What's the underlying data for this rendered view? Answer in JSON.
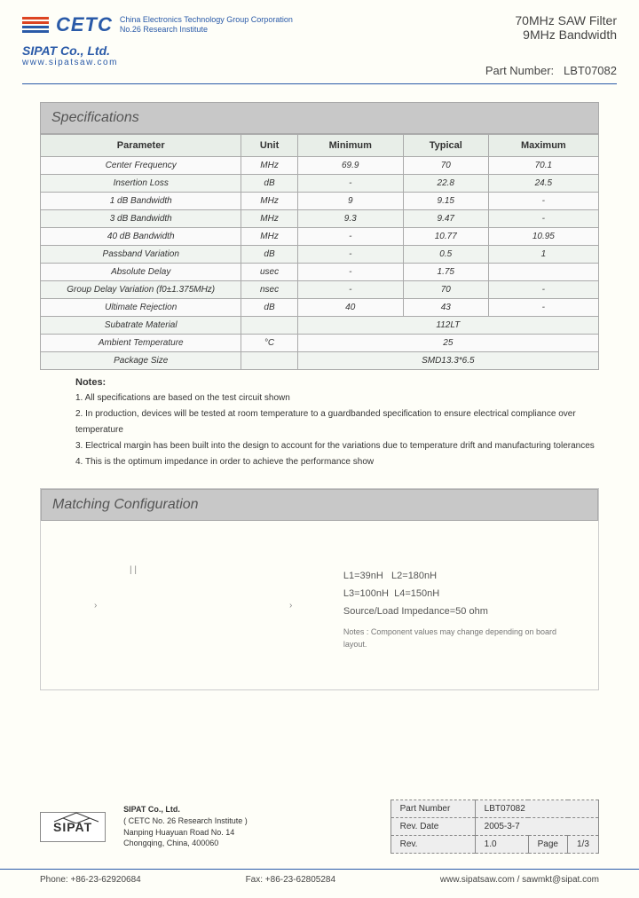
{
  "header": {
    "logo_text": "CETC",
    "corp_line1": "China Electronics Technology Group Corporation",
    "corp_line2": "No.26 Research Institute",
    "sipat": "SIPAT Co., Ltd.",
    "url": "www.sipatsaw.com",
    "product_line1": "70MHz SAW Filter",
    "product_line2": "9MHz Bandwidth",
    "part_label": "Part Number:",
    "part_number": "LBT07082"
  },
  "specifications": {
    "title": "Specifications",
    "columns": [
      "Parameter",
      "Unit",
      "Minimum",
      "Typical",
      "Maximum"
    ],
    "rows": [
      [
        "Center Frequency",
        "MHz",
        "69.9",
        "70",
        "70.1"
      ],
      [
        "Insertion Loss",
        "dB",
        "-",
        "22.8",
        "24.5"
      ],
      [
        "1 dB Bandwidth",
        "MHz",
        "9",
        "9.15",
        "-"
      ],
      [
        "3 dB Bandwidth",
        "MHz",
        "9.3",
        "9.47",
        "-"
      ],
      [
        "40 dB Bandwidth",
        "MHz",
        "-",
        "10.77",
        "10.95"
      ],
      [
        "Passband Variation",
        "dB",
        "-",
        "0.5",
        "1"
      ],
      [
        "Absolute Delay",
        "usec",
        "-",
        "1.75",
        ""
      ],
      [
        "Group Delay Variation (f0±1.375MHz)",
        "nsec",
        "-",
        "70",
        "-"
      ],
      [
        "Ultimate Rejection",
        "dB",
        "40",
        "43",
        "-"
      ]
    ],
    "merged_rows": [
      [
        "Subatrate Material",
        "",
        "112LT"
      ],
      [
        "Ambient Temperature",
        "°C",
        "25"
      ],
      [
        "Package Size",
        "",
        "SMD13.3*6.5"
      ]
    ]
  },
  "notes": {
    "title": "Notes:",
    "items": [
      "1. All specifications are based on the test circuit shown",
      "2. In production, devices will be tested at room temperature to a guardbanded specification to ensure electrical compliance over temperature",
      "3. Electrical margin has been built into the design to account for the variations due to temperature drift and manufacturing tolerances",
      "4. This is the optimum impedance in order to achieve the performance show"
    ]
  },
  "matching": {
    "title": "Matching Configuration",
    "l1": "L1=39nH",
    "l2": "L2=180nH",
    "l3": "L3=100nH",
    "l4": "L4=150nH",
    "impedance": "Source/Load Impedance=50 ohm",
    "note": "Notes : Component values may change depending on board layout."
  },
  "footer_info": {
    "sipat_logo": "SIPAT",
    "company": "SIPAT Co., Ltd.",
    "institute": "( CETC No. 26 Research Institute )",
    "addr1": "Nanping Huayuan Road No. 14",
    "addr2": "Chongqing, China, 400060"
  },
  "rev_table": {
    "part_label": "Part Number",
    "part_val": "LBT07082",
    "date_label": "Rev. Date",
    "date_val": "2005-3-7",
    "rev_label": "Rev.",
    "rev_val": "1.0",
    "page_label": "Page",
    "page_val": "1/3"
  },
  "bottom": {
    "phone": "Phone: +86-23-62920684",
    "fax": "Fax: +86-23-62805284",
    "web": "www.sipatsaw.com / sawmkt@sipat.com"
  }
}
